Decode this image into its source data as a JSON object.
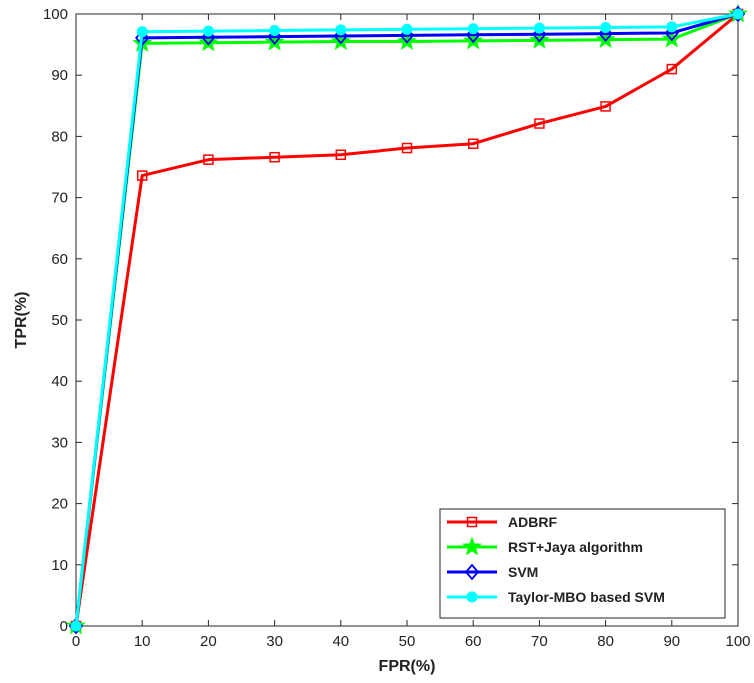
{
  "chart_data": {
    "type": "line",
    "title": "",
    "xlabel": "FPR(%)",
    "ylabel": "TPR(%)",
    "xlim": [
      0,
      100
    ],
    "ylim": [
      0,
      100
    ],
    "x": [
      0,
      10,
      20,
      30,
      40,
      50,
      60,
      70,
      80,
      90,
      100
    ],
    "xticks": [
      0,
      10,
      20,
      30,
      40,
      50,
      60,
      70,
      80,
      90,
      100
    ],
    "yticks": [
      0,
      10,
      20,
      30,
      40,
      50,
      60,
      70,
      80,
      90,
      100
    ],
    "grid": false,
    "legend_position": "bottom-right",
    "series": [
      {
        "name": "ADBRF",
        "color": "#ff0000",
        "marker": "square",
        "values": [
          0,
          73.6,
          76.2,
          76.6,
          77.0,
          78.1,
          78.8,
          82.1,
          84.9,
          91.0,
          100
        ]
      },
      {
        "name": "RST+Jaya algorithm",
        "color": "#00ff00",
        "marker": "star",
        "values": [
          0,
          95.2,
          95.3,
          95.4,
          95.5,
          95.5,
          95.6,
          95.7,
          95.8,
          95.9,
          100
        ]
      },
      {
        "name": "SVM",
        "color": "#0000ff",
        "marker": "diamond",
        "values": [
          0,
          96.1,
          96.2,
          96.3,
          96.4,
          96.5,
          96.6,
          96.7,
          96.8,
          96.9,
          100
        ]
      },
      {
        "name": "Taylor-MBO based SVM",
        "color": "#00ffff",
        "marker": "circle",
        "values": [
          0,
          97.1,
          97.2,
          97.3,
          97.4,
          97.5,
          97.6,
          97.7,
          97.8,
          97.9,
          100
        ]
      }
    ]
  }
}
